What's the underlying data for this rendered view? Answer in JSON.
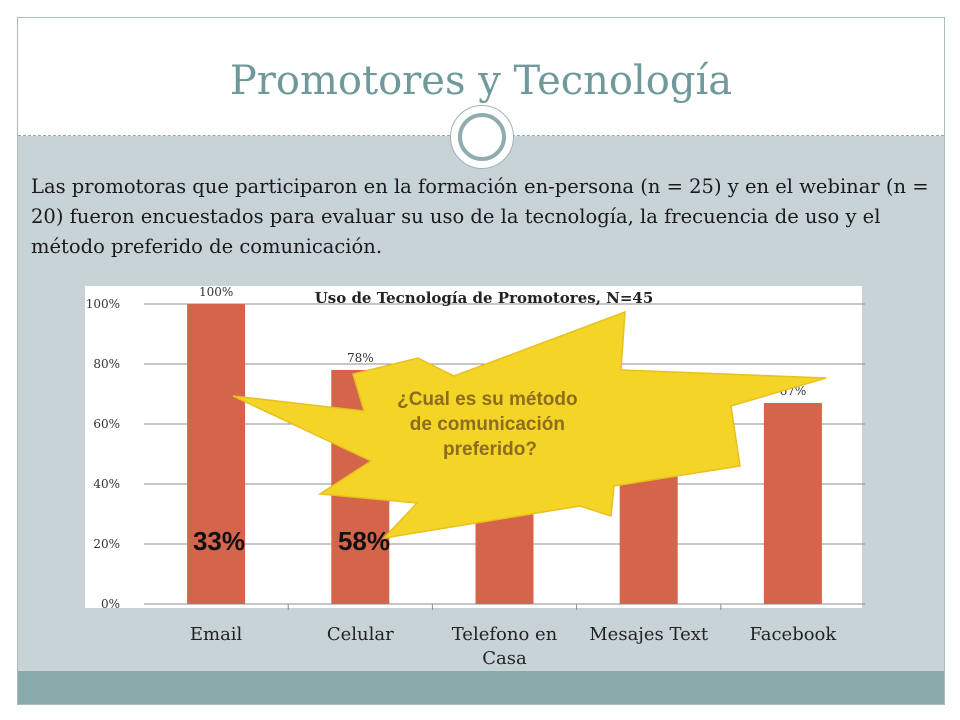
{
  "slide": {
    "title": "Promotores y Tecnología",
    "body": "Las promotoras que participaron en la formación en-persona (n = 25) y en el webinar (n = 20) fueron encuestados para evaluar su uso de la tecnología, la frecuencia de uso y el método preferido de comunicación."
  },
  "colors": {
    "bar": "#d4644a",
    "title": "#6f999a",
    "burst_fill": "#f5d428",
    "burst_text": "#8a6d1e",
    "footer": "#89abab"
  },
  "chart_data": {
    "type": "bar",
    "title": "Uso de Tecnología de Promotores, N=45",
    "categories": [
      "Email",
      "Celular",
      "Telefono en Casa",
      "Mesajes Text",
      "Facebook"
    ],
    "values": [
      100,
      78,
      36,
      53,
      67
    ],
    "data_labels": [
      "100%",
      "78%",
      "",
      "",
      "67%"
    ],
    "ylim": [
      0,
      100
    ],
    "yticks": [
      "0%",
      "20%",
      "40%",
      "60%",
      "80%",
      "100%"
    ],
    "xlabel": "",
    "ylabel": "",
    "grid": true,
    "legend": "none"
  },
  "overlays": {
    "pct_email": "33%",
    "pct_celular": "58%",
    "burst_text": "¿Cual es su método de comunicación preferido?"
  }
}
